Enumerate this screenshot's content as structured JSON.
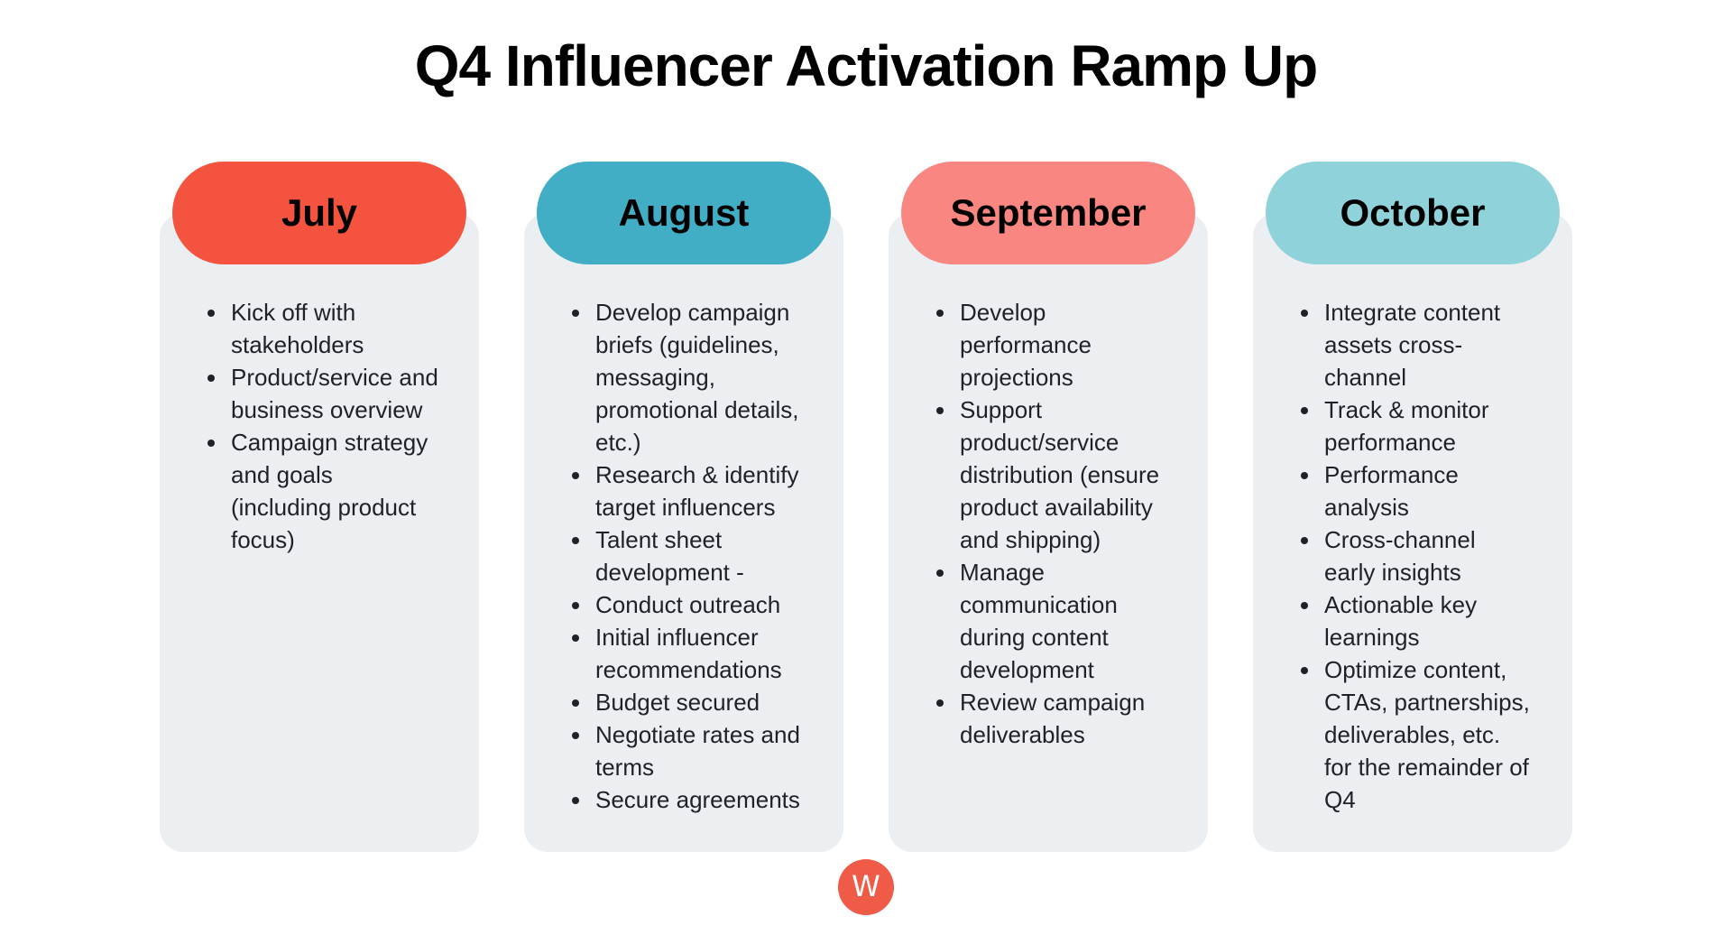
{
  "title": "Q4 Influencer Activation Ramp Up",
  "colors": {
    "card_bg": "#ECEFF2",
    "body_text": "#1E2126",
    "title_text": "#000000"
  },
  "columns": [
    {
      "month": "July",
      "color": "#F4543F",
      "items": [
        "Kick off with stakeholders",
        "Product/service and business overview",
        "Campaign strategy and goals (including product focus)"
      ]
    },
    {
      "month": "August",
      "color": "#41AEC6",
      "items": [
        "Develop campaign briefs (guidelines, messaging, promotional details, etc.)",
        "Research & identify target influencers",
        "Talent sheet development -",
        "Conduct outreach",
        "Initial influencer recommendations",
        "Budget secured",
        "Negotiate rates and terms",
        "Secure agreements"
      ]
    },
    {
      "month": "September",
      "color": "#F98680",
      "items": [
        "Develop performance projections",
        "Support product/service distribution (ensure product availability and shipping)",
        "Manage communication during content development",
        "Review campaign deliverables"
      ]
    },
    {
      "month": "October",
      "color": "#90D2D9",
      "items": [
        "Integrate content assets cross-channel",
        "Track & monitor performance",
        "Performance analysis",
        "Cross-channel early insights",
        "Actionable key learnings",
        "Optimize content, CTAs, partnerships, deliverables, etc. for the remainder of Q4"
      ]
    }
  ],
  "logo": {
    "letter": "W",
    "color": "#EF5B47"
  }
}
